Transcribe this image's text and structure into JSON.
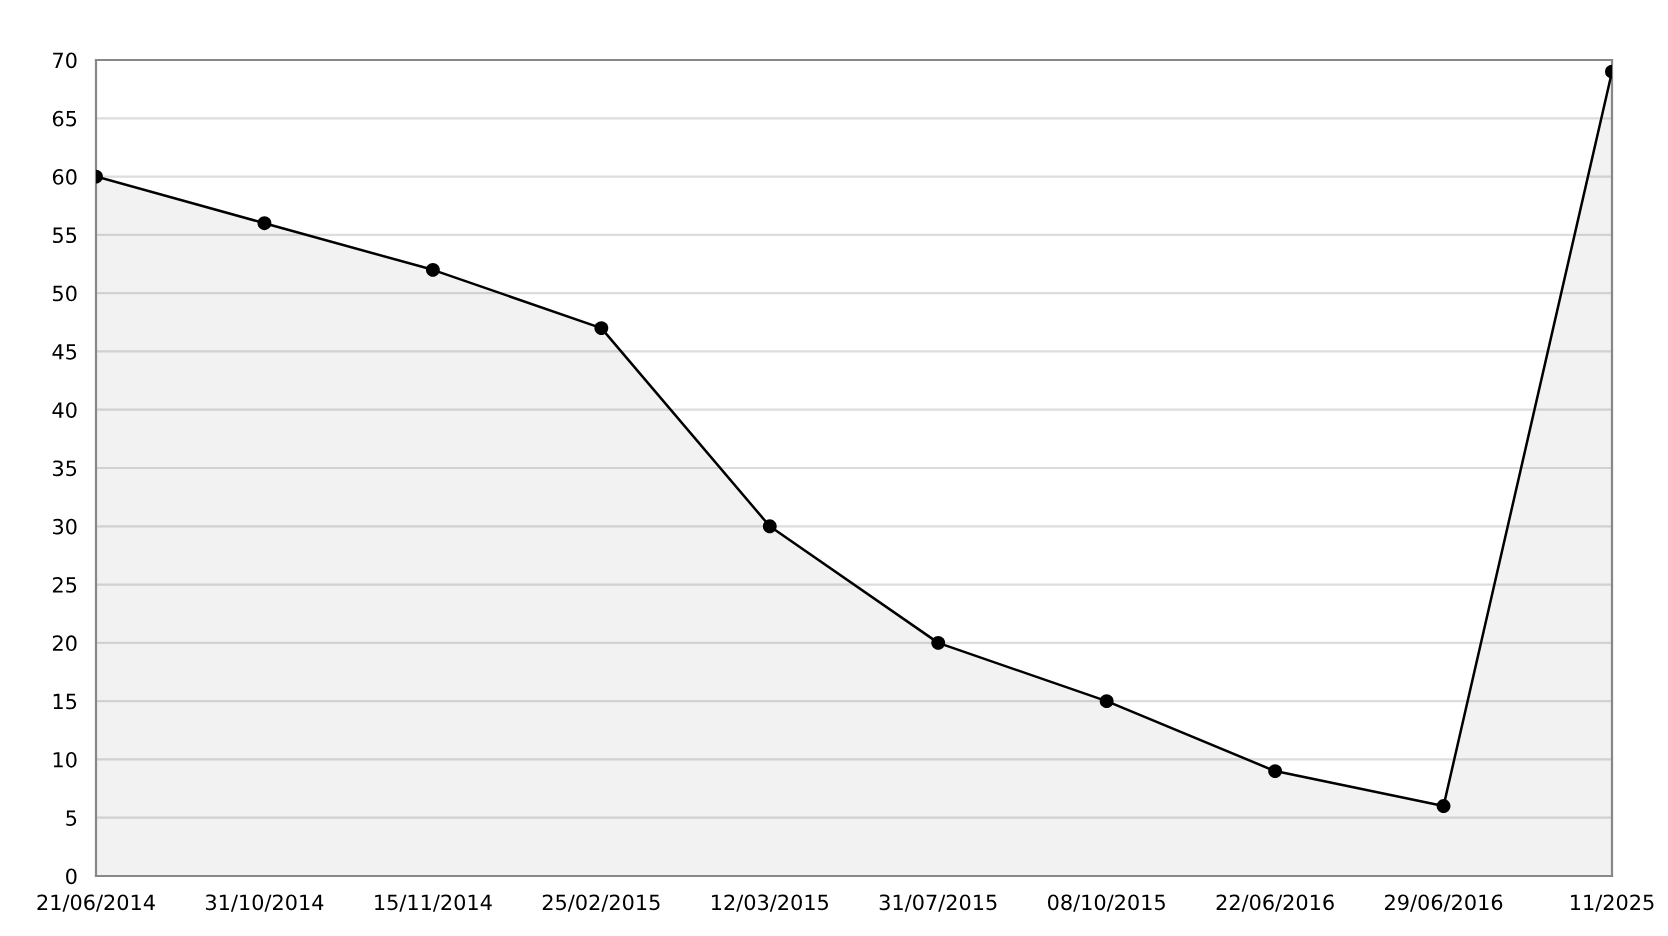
{
  "chart_data": {
    "type": "area",
    "categories": [
      "21/06/2014",
      "31/10/2014",
      "15/11/2014",
      "25/02/2015",
      "12/03/2015",
      "31/07/2015",
      "08/10/2015",
      "22/06/2016",
      "29/06/2016",
      "11/2025"
    ],
    "series": [
      {
        "color": "#000000",
        "values": [
          60,
          56,
          52,
          47,
          30,
          20,
          15,
          9,
          6,
          69
        ]
      }
    ],
    "ylim": [
      0,
      70
    ],
    "yticks": [
      0,
      5,
      10,
      15,
      20,
      25,
      30,
      35,
      40,
      45,
      50,
      55,
      60,
      65,
      70
    ],
    "grid": "y",
    "marker": "circle",
    "line_style": "solid",
    "legend": false
  }
}
